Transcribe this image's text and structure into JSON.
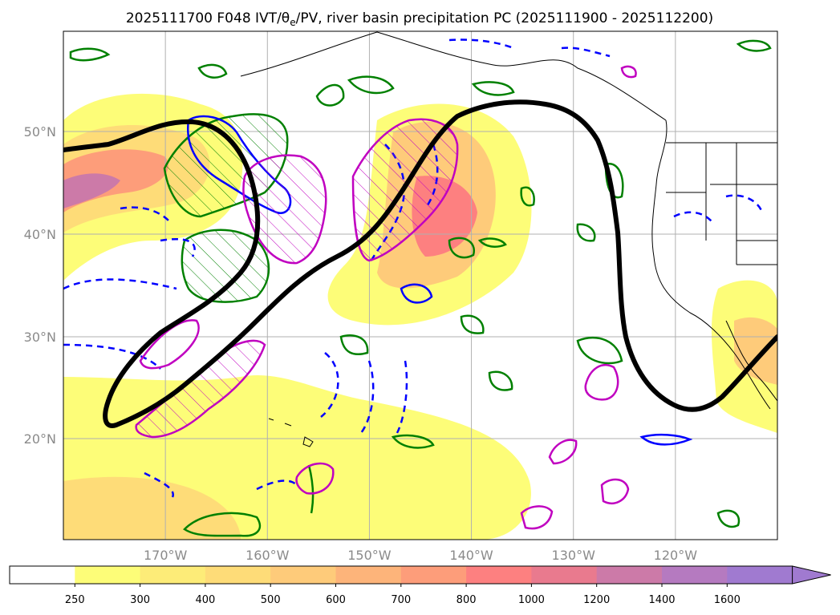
{
  "chart_data": {
    "type": "map",
    "title": "2025111700 F048 IVT/θe/PV, river basin precipitation PC (2025111900 - 2025112200)",
    "title_main": "2025111700 F048 IVT/θ",
    "title_sub": "e",
    "title_rest": "/PV, river basin precipitation PC (2025111900 - 2025112200)",
    "latitude_labels": [
      "20°N",
      "30°N",
      "40°N",
      "50°N"
    ],
    "latitude_values": [
      20,
      30,
      40,
      50
    ],
    "longitude_labels": [
      "170°W",
      "160°W",
      "150°W",
      "140°W",
      "130°W",
      "120°W"
    ],
    "longitude_values": [
      -170,
      -160,
      -150,
      -140,
      -130,
      -120
    ],
    "extent": {
      "lon_min": -180,
      "lon_max": -110,
      "lat_min": 10,
      "lat_max": 60
    },
    "colorbar": {
      "variable": "IVT",
      "extend": "max",
      "levels": [
        250,
        300,
        400,
        500,
        600,
        700,
        800,
        1000,
        1200,
        1400,
        1600
      ],
      "tick_labels": [
        "250",
        "300",
        "400",
        "500",
        "600",
        "700",
        "800",
        "1000",
        "1200",
        "1400",
        "1600"
      ],
      "colors": [
        "#ffffff",
        "#fdfd78",
        "#fdec78",
        "#fedc78",
        "#fecb7a",
        "#fdb47a",
        "#fd9d7a",
        "#fd8080",
        "#e97a8e",
        "#cc7aa8",
        "#b57ac0",
        "#a07ad0"
      ]
    },
    "contours": [
      {
        "name": "dividing streamline",
        "color": "#000000"
      },
      {
        "name": "θe positive",
        "color": "#008000"
      },
      {
        "name": "θe negative",
        "color": "#0000ff"
      },
      {
        "name": "PV anomaly",
        "color": "#c000c0"
      }
    ]
  }
}
